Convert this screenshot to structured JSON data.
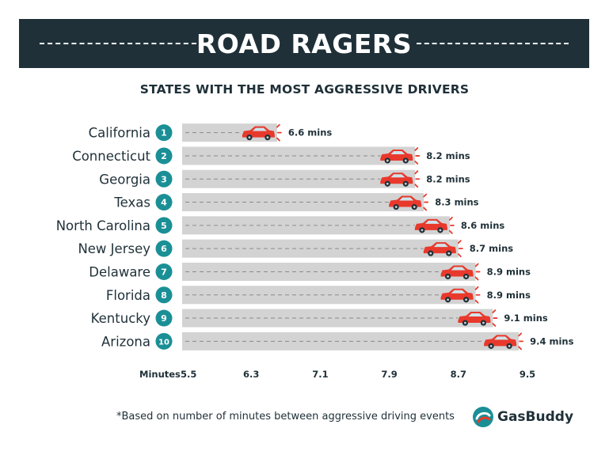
{
  "banner": {
    "title": "ROAD RAGERS"
  },
  "chart_data": {
    "type": "bar",
    "title": "STATES WITH THE MOST AGGRESSIVE DRIVERS",
    "xlabel": "Minutes",
    "ylabel": "",
    "xlim": [
      5.5,
      9.5
    ],
    "ticks": [
      5.5,
      6.3,
      7.1,
      7.9,
      8.7,
      9.5
    ],
    "tick_labels": [
      "5.5",
      "6.3",
      "7.1",
      "7.9",
      "8.7",
      "9.5"
    ],
    "orientation": "horizontal",
    "grid": false,
    "categories": [
      "California",
      "Connecticut",
      "Georgia",
      "Texas",
      "North Carolina",
      "New Jersey",
      "Delaware",
      "Florida",
      "Kentucky",
      "Arizona"
    ],
    "ranks": [
      "1",
      "2",
      "3",
      "4",
      "5",
      "6",
      "7",
      "8",
      "9",
      "10"
    ],
    "values": [
      6.6,
      8.2,
      8.2,
      8.3,
      8.6,
      8.7,
      8.9,
      8.9,
      9.1,
      9.4
    ],
    "value_labels": [
      "6.6 mins",
      "8.2 mins",
      "8.2 mins",
      "8.3 mins",
      "8.6 mins",
      "8.7 mins",
      "8.9 mins",
      "8.9 mins",
      "9.1 mins",
      "9.4 mins"
    ]
  },
  "footnote": "*Based on number of minutes between aggressive driving events",
  "brand": {
    "name": "GasBuddy"
  },
  "colors": {
    "dark": "#1f3038",
    "teal": "#1a8f96",
    "bar": "#d3d3d3",
    "car": "#e8392c",
    "accent": "#e8392c"
  }
}
